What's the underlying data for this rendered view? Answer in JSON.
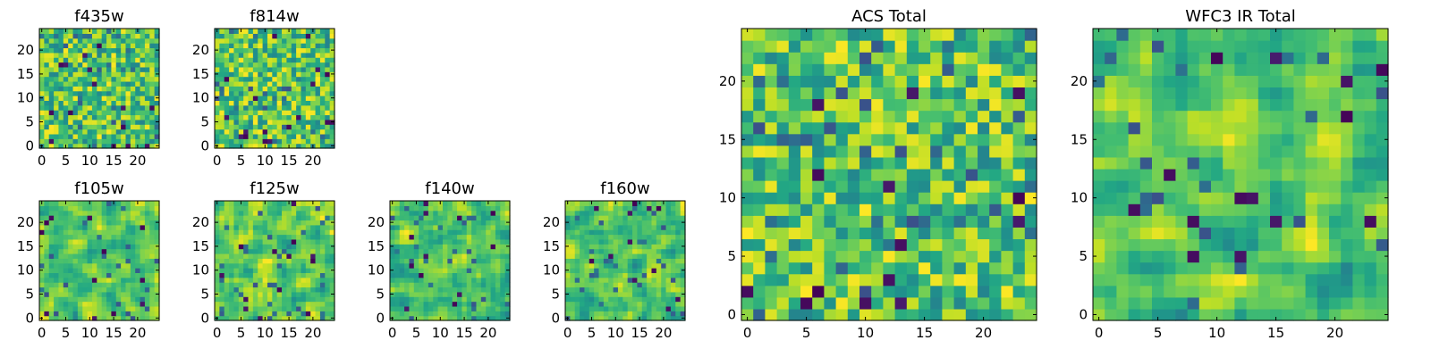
{
  "chart_data": [
    {
      "type": "heatmap",
      "title": "f435w",
      "xticks": [
        0,
        5,
        10,
        15,
        20
      ],
      "yticks": [
        0,
        5,
        10,
        15,
        20
      ],
      "xlim": [
        0,
        24
      ],
      "ylim": [
        0,
        24
      ],
      "grid": false,
      "colormap": "viridis",
      "seed": 11,
      "smooth": 0
    },
    {
      "type": "heatmap",
      "title": "f814w",
      "xticks": [
        0,
        5,
        10,
        15,
        20
      ],
      "yticks": [
        0,
        5,
        10,
        15,
        20
      ],
      "xlim": [
        0,
        24
      ],
      "ylim": [
        0,
        24
      ],
      "grid": false,
      "colormap": "viridis",
      "seed": 23,
      "smooth": 0
    },
    {
      "type": "heatmap",
      "title": "f105w",
      "xticks": [
        0,
        5,
        10,
        15,
        20
      ],
      "yticks": [
        0,
        5,
        10,
        15,
        20
      ],
      "xlim": [
        0,
        24
      ],
      "ylim": [
        0,
        24
      ],
      "grid": false,
      "colormap": "viridis",
      "seed": 37,
      "smooth": 1
    },
    {
      "type": "heatmap",
      "title": "f125w",
      "xticks": [
        0,
        5,
        10,
        15,
        20
      ],
      "yticks": [
        0,
        5,
        10,
        15,
        20
      ],
      "xlim": [
        0,
        24
      ],
      "ylim": [
        0,
        24
      ],
      "grid": false,
      "colormap": "viridis",
      "seed": 41,
      "smooth": 1
    },
    {
      "type": "heatmap",
      "title": "f140w",
      "xticks": [
        0,
        5,
        10,
        15,
        20
      ],
      "yticks": [
        0,
        5,
        10,
        15,
        20
      ],
      "xlim": [
        0,
        24
      ],
      "ylim": [
        0,
        24
      ],
      "grid": false,
      "colormap": "viridis",
      "seed": 53,
      "smooth": 1
    },
    {
      "type": "heatmap",
      "title": "f160w",
      "xticks": [
        0,
        5,
        10,
        15,
        20
      ],
      "yticks": [
        0,
        5,
        10,
        15,
        20
      ],
      "xlim": [
        0,
        24
      ],
      "ylim": [
        0,
        24
      ],
      "grid": false,
      "colormap": "viridis",
      "seed": 67,
      "smooth": 1
    },
    {
      "type": "heatmap",
      "title": "ACS Total",
      "xticks": [
        0,
        5,
        10,
        15,
        20
      ],
      "yticks": [
        0,
        5,
        10,
        15,
        20
      ],
      "xlim": [
        0,
        24
      ],
      "ylim": [
        0,
        24
      ],
      "grid": false,
      "colormap": "viridis",
      "seed": 79,
      "smooth": 0
    },
    {
      "type": "heatmap",
      "title": "WFC3 IR Total",
      "xticks": [
        0,
        5,
        10,
        15,
        20
      ],
      "yticks": [
        0,
        5,
        10,
        15,
        20
      ],
      "xlim": [
        0,
        24
      ],
      "ylim": [
        0,
        24
      ],
      "grid": false,
      "colormap": "viridis",
      "seed": 97,
      "smooth": 1
    }
  ],
  "colors": {
    "viridis_dark": "#440154",
    "viridis_teal": "#21918c",
    "viridis_green": "#5ec962",
    "viridis_yellow": "#fde725"
  }
}
